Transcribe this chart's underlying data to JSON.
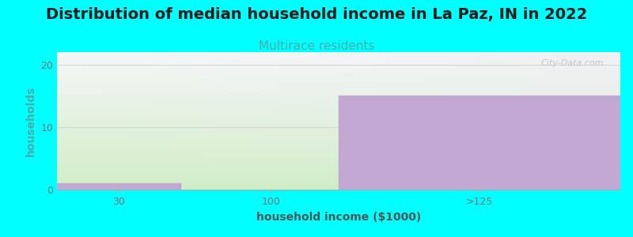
{
  "title": "Distribution of median household income in La Paz, IN in 2022",
  "subtitle": "Multirace residents",
  "xlabel": "household income ($1000)",
  "ylabel": "households",
  "background_color": "#00FFFF",
  "bar_color": "#c0a8d0",
  "bar_edge_color": "#c0a8d0",
  "categories": [
    "30",
    "100",
    ">125"
  ],
  "values": [
    1,
    0,
    15
  ],
  "ylim": [
    0,
    22
  ],
  "yticks": [
    0,
    10,
    20
  ],
  "title_fontsize": 14,
  "subtitle_fontsize": 11,
  "subtitle_color": "#4aacac",
  "axis_label_fontsize": 10,
  "tick_fontsize": 9,
  "tick_color": "#777777",
  "watermark": "City-Data.com",
  "watermark_color": "#bbbbbb",
  "grid_color": "#cccccc",
  "ylabel_color": "#4aacac",
  "xlabel_color": "#555555"
}
